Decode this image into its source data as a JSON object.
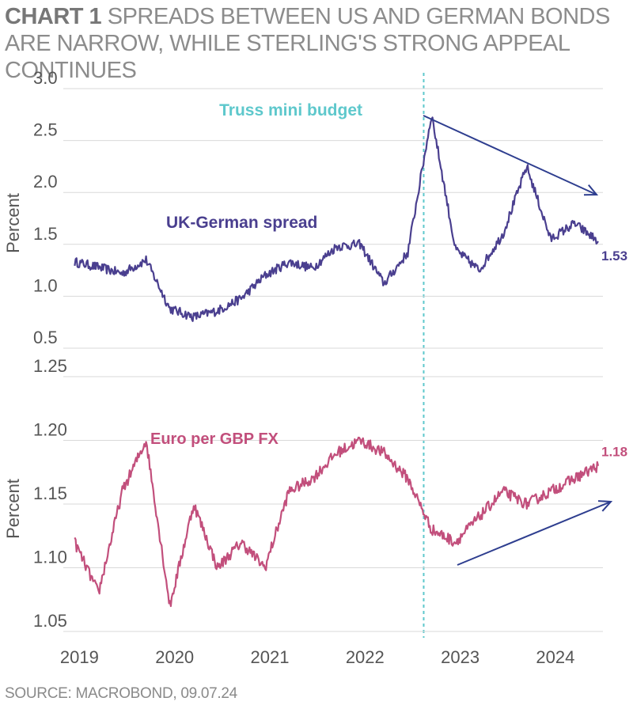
{
  "title": {
    "kicker": "CHART 1",
    "text": " SPREADS BETWEEN US AND GERMAN BONDS ARE NARROW, WHILE STERLING'S STRONG APPEAL CONTINUES"
  },
  "source": "SOURCE: MACROBOND, 09.07.24",
  "chart_data": [
    {
      "type": "line",
      "ylabel": "Percent",
      "ylim": [
        0.5,
        3.0
      ],
      "yticks": [
        "3.0",
        "2.5",
        "2.0",
        "1.5",
        "1.0",
        "0.5"
      ],
      "grid": true,
      "series": [
        {
          "name": "UK-German spread",
          "color": "#4a3f8f",
          "last_value_label": "1.53",
          "x": [
            "2019-01",
            "2019-04",
            "2019-07",
            "2019-10",
            "2020-01",
            "2020-04",
            "2020-07",
            "2020-10",
            "2021-01",
            "2021-04",
            "2021-07",
            "2021-10",
            "2022-01",
            "2022-04",
            "2022-07",
            "2022-10",
            "2023-01",
            "2023-04",
            "2023-07",
            "2023-10",
            "2024-01",
            "2024-04",
            "2024-07"
          ],
          "values": [
            1.33,
            1.28,
            1.22,
            1.35,
            0.88,
            0.8,
            0.86,
            0.98,
            1.2,
            1.33,
            1.27,
            1.48,
            1.5,
            1.12,
            1.42,
            2.75,
            1.45,
            1.25,
            1.6,
            2.25,
            1.55,
            1.7,
            1.53
          ]
        }
      ],
      "annotations": [
        {
          "text": "Truss mini budget",
          "color": "#5ec8cc",
          "x": "2022-09"
        },
        {
          "text": "UK-German spread",
          "color": "#4a3f8f"
        },
        {
          "type": "trend-arrow",
          "direction": "down",
          "color": "#2e3e8f"
        }
      ]
    },
    {
      "type": "line",
      "ylabel": "Percent",
      "ylim": [
        1.05,
        1.25
      ],
      "yticks": [
        "1.25",
        "1.20",
        "1.15",
        "1.10",
        "1.05"
      ],
      "grid": true,
      "series": [
        {
          "name": "Euro per GBP FX",
          "color": "#c24f7c",
          "last_value_label": "1.18",
          "x": [
            "2019-01",
            "2019-04",
            "2019-07",
            "2019-10",
            "2020-01",
            "2020-04",
            "2020-07",
            "2020-10",
            "2021-01",
            "2021-04",
            "2021-07",
            "2021-10",
            "2022-01",
            "2022-04",
            "2022-07",
            "2022-10",
            "2023-01",
            "2023-04",
            "2023-07",
            "2023-10",
            "2024-01",
            "2024-04",
            "2024-07"
          ],
          "values": [
            1.12,
            1.08,
            1.16,
            1.2,
            1.07,
            1.15,
            1.1,
            1.12,
            1.1,
            1.16,
            1.17,
            1.19,
            1.2,
            1.19,
            1.17,
            1.13,
            1.12,
            1.14,
            1.16,
            1.15,
            1.16,
            1.17,
            1.18
          ]
        }
      ],
      "annotations": [
        {
          "type": "trend-arrow",
          "direction": "up",
          "color": "#2e3e8f"
        }
      ]
    }
  ],
  "xaxis": {
    "ticks": [
      "2019",
      "2020",
      "2021",
      "2022",
      "2023",
      "2024"
    ]
  }
}
